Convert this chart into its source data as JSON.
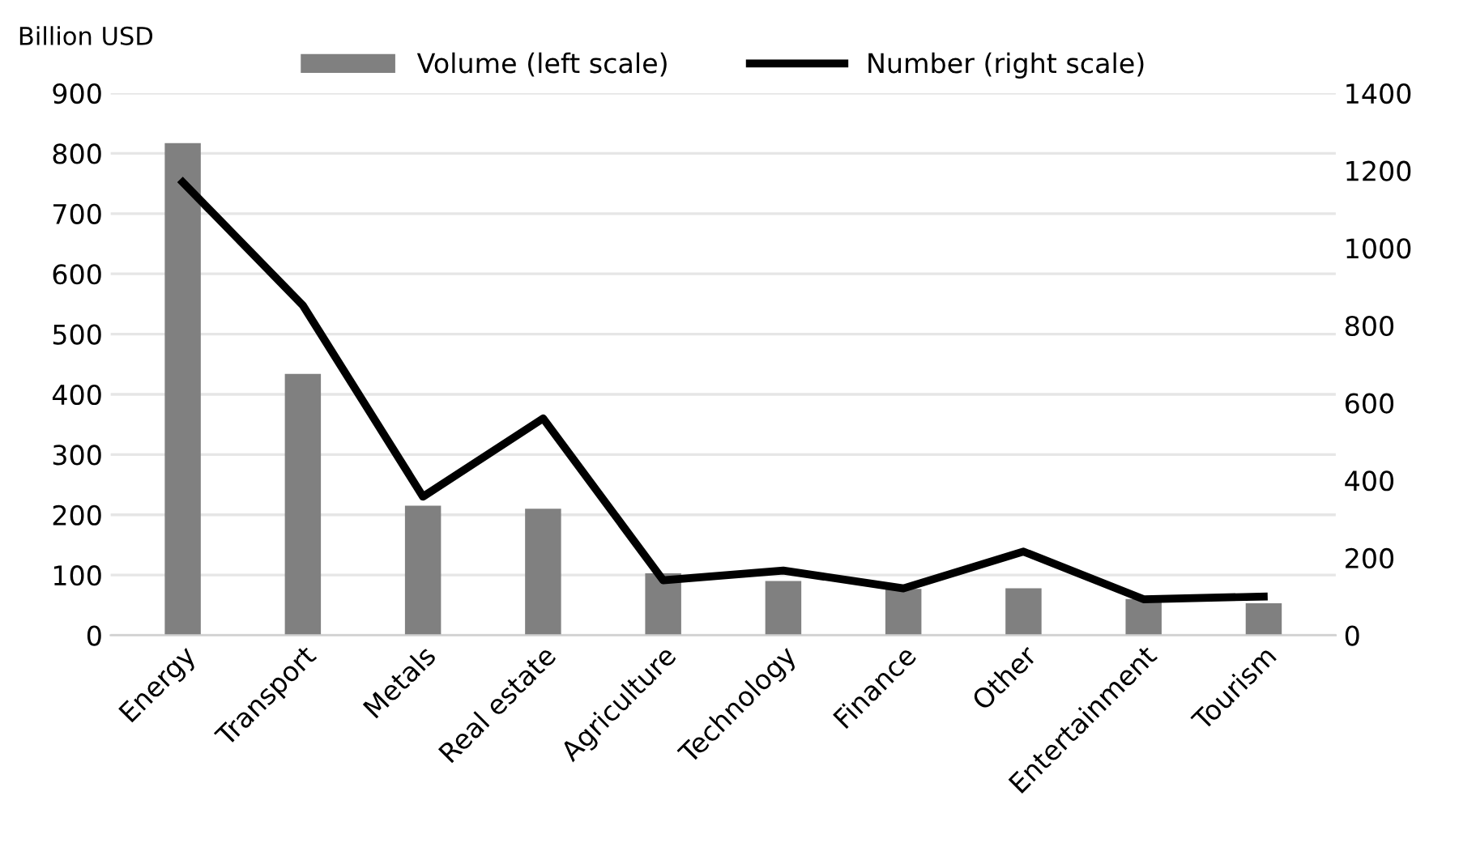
{
  "chart_data": {
    "type": "bar",
    "ylabel": "Billion USD",
    "categories": [
      "Energy",
      "Transport",
      "Metals",
      "Real estate",
      "Agriculture",
      "Technology",
      "Finance",
      "Other",
      "Entertainment",
      "Tourism"
    ],
    "series": [
      {
        "name": "Volume (left scale)",
        "color": "#808080",
        "values": [
          817,
          434,
          215,
          210,
          103,
          90,
          77,
          78,
          60,
          53
        ]
      },
      {
        "name": "Number (right scale)",
        "type": "line",
        "axis": "y2",
        "color": "#000000",
        "values": [
          1170,
          852,
          358,
          560,
          142,
          167,
          121,
          216,
          93,
          100
        ]
      }
    ],
    "ylim": [
      0,
      900
    ],
    "yticks": [
      0,
      100,
      200,
      300,
      400,
      500,
      600,
      700,
      800,
      900
    ],
    "y2lim": [
      0,
      1400
    ],
    "y2ticks": [
      0,
      200,
      400,
      600,
      800,
      1000,
      1200,
      1400
    ],
    "grid": "y",
    "legend": "top",
    "marker": "none",
    "line_style": "solid"
  }
}
